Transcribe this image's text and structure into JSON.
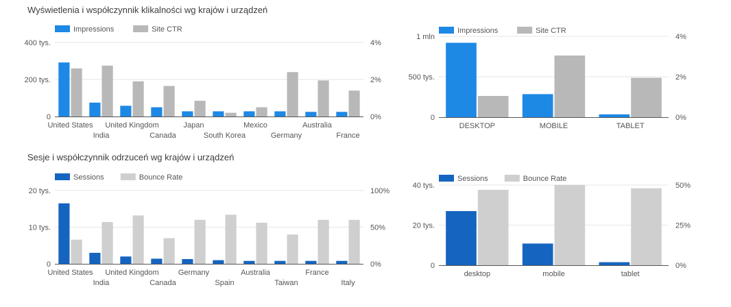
{
  "titles": {
    "top": "Wyświetlenia i współczynnik klikalności wg krajów i urządzeń",
    "bottom": "Sesje i współczynnik odrzuceń wg krajów i urządzeń"
  },
  "colors": {
    "impressions": "#1e88e5",
    "ctr": "#b8b8b8",
    "sessions": "#1565c0",
    "bounce": "#cfcfcf",
    "axis_text": "#555555",
    "grid": "#e6e6e6",
    "baseline": "#555555"
  },
  "chart_data": [
    {
      "id": "impr-country",
      "type": "bar",
      "legend_position": "top-left",
      "categories": [
        "United States",
        "India",
        "United Kingdom",
        "Canada",
        "Japan",
        "South Korea",
        "Mexico",
        "Germany",
        "Australia",
        "France"
      ],
      "series": [
        {
          "name": "Impressions",
          "axis": "left",
          "color_key": "impressions",
          "values": [
            292000,
            75000,
            58000,
            50000,
            28000,
            28000,
            28000,
            28000,
            25000,
            25000
          ]
        },
        {
          "name": "Site CTR",
          "axis": "right",
          "color_key": "ctr",
          "values": [
            2.6,
            2.75,
            1.9,
            1.65,
            0.85,
            0.2,
            0.5,
            2.4,
            1.95,
            1.4
          ]
        }
      ],
      "left_axis": {
        "min": 0,
        "max": 400000,
        "ticks": [
          0,
          200000,
          400000
        ],
        "tick_labels": [
          "0",
          "200 tys.",
          "400 tys."
        ]
      },
      "right_axis": {
        "min": 0,
        "max": 4,
        "ticks": [
          0,
          2,
          4
        ],
        "tick_labels": [
          "0%",
          "2%",
          "4%"
        ]
      }
    },
    {
      "id": "impr-device",
      "type": "bar",
      "legend_position": "top-left",
      "categories": [
        "DESKTOP",
        "MOBILE",
        "TABLET"
      ],
      "series": [
        {
          "name": "Impressions",
          "axis": "left",
          "color_key": "impressions",
          "values": [
            920000,
            285000,
            35000
          ]
        },
        {
          "name": "Site CTR",
          "axis": "right",
          "color_key": "ctr",
          "values": [
            1.05,
            3.05,
            1.95
          ]
        }
      ],
      "left_axis": {
        "min": 0,
        "max": 1000000,
        "ticks": [
          0,
          500000,
          1000000
        ],
        "tick_labels": [
          "0",
          "500 tys.",
          "1 mln"
        ]
      },
      "right_axis": {
        "min": 0,
        "max": 4,
        "ticks": [
          0,
          2,
          4
        ],
        "tick_labels": [
          "0%",
          "2%",
          "4%"
        ]
      }
    },
    {
      "id": "sess-country",
      "type": "bar",
      "legend_position": "top-left",
      "categories": [
        "United States",
        "India",
        "United Kingdom",
        "Canada",
        "Germany",
        "Spain",
        "Australia",
        "Taiwan",
        "France",
        "Italy"
      ],
      "series": [
        {
          "name": "Sessions",
          "axis": "left",
          "color_key": "sessions",
          "values": [
            16500,
            3000,
            2000,
            1400,
            1300,
            1000,
            800,
            800,
            800,
            800
          ]
        },
        {
          "name": "Bounce Rate",
          "axis": "right",
          "color_key": "bounce",
          "values": [
            33,
            57,
            66,
            35,
            60,
            67,
            56,
            40,
            60,
            60
          ]
        }
      ],
      "left_axis": {
        "min": 0,
        "max": 20000,
        "ticks": [
          0,
          10000,
          20000
        ],
        "tick_labels": [
          "0",
          "10 tys.",
          "20 tys."
        ]
      },
      "right_axis": {
        "min": 0,
        "max": 100,
        "ticks": [
          0,
          50,
          100
        ],
        "tick_labels": [
          "0%",
          "50%",
          "100%"
        ]
      }
    },
    {
      "id": "sess-device",
      "type": "bar",
      "legend_position": "top-left",
      "categories": [
        "desktop",
        "mobile",
        "tablet"
      ],
      "series": [
        {
          "name": "Sessions",
          "axis": "left",
          "color_key": "sessions",
          "values": [
            27000,
            10800,
            1500
          ]
        },
        {
          "name": "Bounce Rate",
          "axis": "right",
          "color_key": "bounce",
          "values": [
            47,
            50,
            48
          ]
        }
      ],
      "left_axis": {
        "min": 0,
        "max": 40000,
        "ticks": [
          0,
          20000,
          40000
        ],
        "tick_labels": [
          "0",
          "20 tys.",
          "40 tys."
        ]
      },
      "right_axis": {
        "min": 0,
        "max": 50,
        "ticks": [
          0,
          25,
          50
        ],
        "tick_labels": [
          "0%",
          "25%",
          "50%"
        ]
      }
    }
  ]
}
